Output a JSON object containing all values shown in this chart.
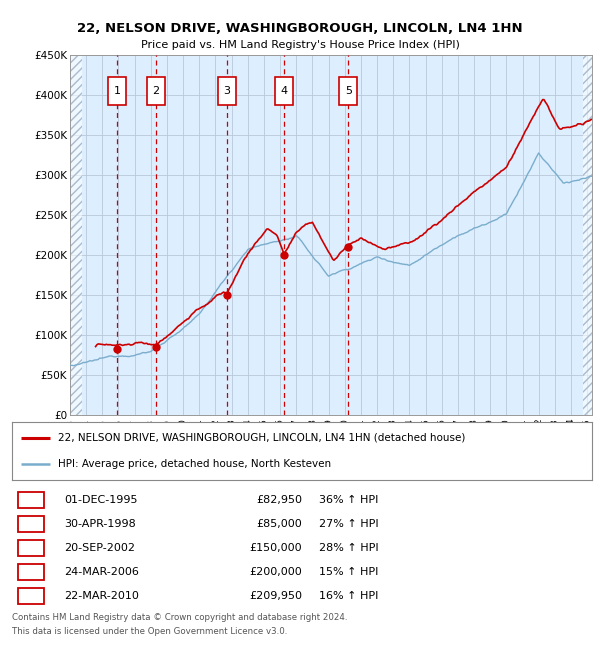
{
  "title": "22, NELSON DRIVE, WASHINGBOROUGH, LINCOLN, LN4 1HN",
  "subtitle": "Price paid vs. HM Land Registry's House Price Index (HPI)",
  "sales": [
    {
      "num": 1,
      "date": "01-DEC-1995",
      "year": 1995.92,
      "price": 82950,
      "hpi_pct": "36% ↑ HPI"
    },
    {
      "num": 2,
      "date": "30-APR-1998",
      "year": 1998.33,
      "price": 85000,
      "hpi_pct": "27% ↑ HPI"
    },
    {
      "num": 3,
      "date": "20-SEP-2002",
      "year": 2002.72,
      "price": 150000,
      "hpi_pct": "28% ↑ HPI"
    },
    {
      "num": 4,
      "date": "24-MAR-2006",
      "year": 2006.23,
      "price": 200000,
      "hpi_pct": "15% ↑ HPI"
    },
    {
      "num": 5,
      "date": "22-MAR-2010",
      "year": 2010.22,
      "price": 209950,
      "hpi_pct": "16% ↑ HPI"
    }
  ],
  "legend_line1": "22, NELSON DRIVE, WASHINGBOROUGH, LINCOLN, LN4 1HN (detached house)",
  "legend_line2": "HPI: Average price, detached house, North Kesteven",
  "footer1": "Contains HM Land Registry data © Crown copyright and database right 2024.",
  "footer2": "This data is licensed under the Open Government Licence v3.0.",
  "red_color": "#cc0000",
  "blue_color": "#7aadcc",
  "bg_color": "#ddeeff",
  "hatch_color": "#aabbcc",
  "grid_color": "#b8c8d8",
  "ylim": [
    0,
    450000
  ],
  "xlim_start": 1993.0,
  "xlim_end": 2025.3,
  "hatch_left_end": 1993.75,
  "hatch_right_start": 2024.75
}
